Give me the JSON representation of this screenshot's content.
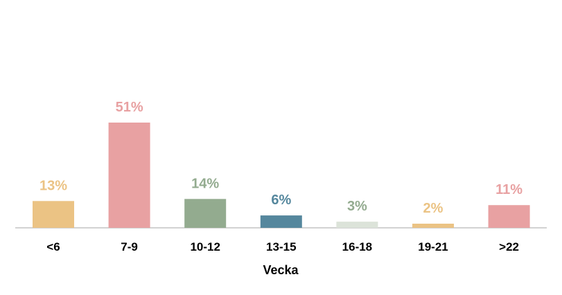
{
  "chart_data": {
    "type": "bar",
    "categories": [
      "<6",
      "7-9",
      "10-12",
      "13-15",
      "16-18",
      "19-21",
      ">22"
    ],
    "values": [
      13,
      51,
      14,
      6,
      3,
      2,
      11
    ],
    "value_labels": [
      "13%",
      "51%",
      "14%",
      "6%",
      "3%",
      "2%",
      "11%"
    ],
    "colors": [
      "#EBC384",
      "#E8A1A2",
      "#93AB8F",
      "#55879D",
      "#DCE3D9",
      "#EBC384",
      "#E8A1A2"
    ],
    "label_colors": [
      "#EBC384",
      "#E8A1A2",
      "#93AB8F",
      "#55879D",
      "#93AB8F",
      "#EBC384",
      "#E8A1A2"
    ],
    "title": "",
    "xlabel": "Vecka",
    "ylabel": "",
    "ylim": [
      0,
      60
    ],
    "grid": false,
    "legend": "none"
  }
}
